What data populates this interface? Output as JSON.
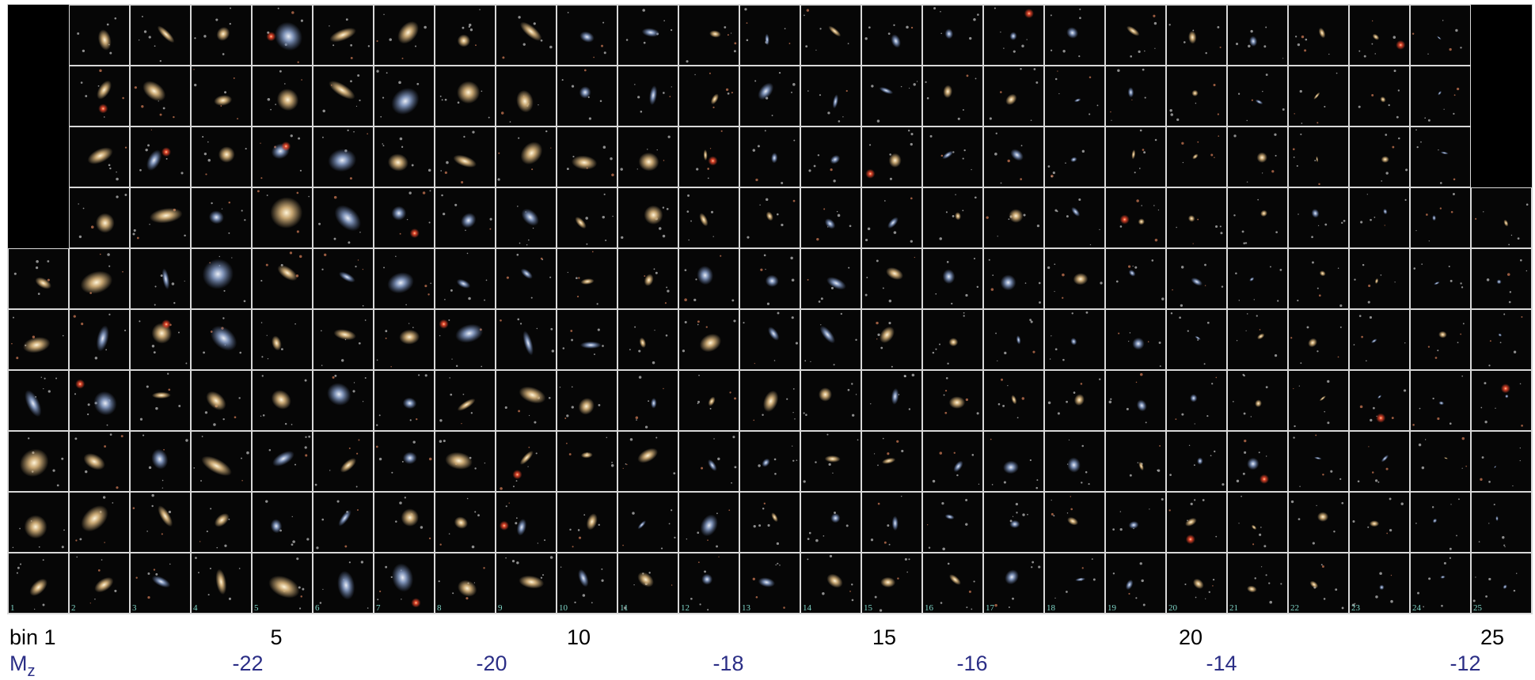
{
  "figure": {
    "column_numbers": [
      "1",
      "2",
      "3",
      "4",
      "5",
      "6",
      "7",
      "8",
      "9",
      "10",
      "11",
      "12",
      "13",
      "14",
      "15",
      "16",
      "17",
      "18",
      "19",
      "20",
      "21",
      "22",
      "23",
      "24",
      "25"
    ],
    "bin_label": "bin 1",
    "bin_ticks": [
      "5",
      "10",
      "15",
      "20",
      "25"
    ],
    "mz_label": {
      "symbol": "M",
      "subscript": "z"
    },
    "mz_ticks": [
      "-22",
      "-20",
      "-18",
      "-16",
      "-14",
      "-12"
    ]
  }
}
